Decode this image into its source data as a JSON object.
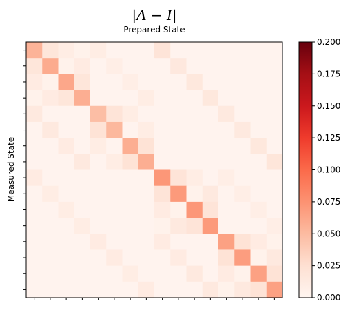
{
  "chart_data": {
    "type": "heatmap",
    "title": "|A − I|",
    "subtitle": "Prepared State",
    "xlabel": "",
    "ylabel": "Measured State",
    "colormap": "Reds",
    "vmin": 0,
    "vmax": 0.2,
    "colorbar_ticks": [
      "0.000",
      "0.025",
      "0.050",
      "0.075",
      "0.100",
      "0.125",
      "0.150",
      "0.175",
      "0.200"
    ],
    "x_tick_labels_visible": false,
    "y_tick_labels_visible": false,
    "matrix": [
      [
        0.055,
        0.018,
        0.01,
        0.004,
        0.01,
        0.002,
        0.002,
        0.002,
        0.02,
        0.002,
        0.002,
        0.002,
        0.002,
        0.002,
        0.002,
        0.002
      ],
      [
        0.018,
        0.06,
        0.004,
        0.012,
        0.002,
        0.008,
        0.002,
        0.002,
        0.002,
        0.015,
        0.002,
        0.002,
        0.002,
        0.002,
        0.002,
        0.002
      ],
      [
        0.012,
        0.004,
        0.062,
        0.018,
        0.002,
        0.002,
        0.008,
        0.002,
        0.002,
        0.002,
        0.016,
        0.002,
        0.002,
        0.002,
        0.002,
        0.002
      ],
      [
        0.004,
        0.012,
        0.018,
        0.058,
        0.002,
        0.002,
        0.002,
        0.01,
        0.002,
        0.002,
        0.002,
        0.016,
        0.002,
        0.002,
        0.002,
        0.002
      ],
      [
        0.014,
        0.002,
        0.002,
        0.002,
        0.048,
        0.02,
        0.01,
        0.002,
        0.002,
        0.002,
        0.002,
        0.002,
        0.014,
        0.002,
        0.002,
        0.002
      ],
      [
        0.002,
        0.014,
        0.002,
        0.002,
        0.022,
        0.052,
        0.002,
        0.01,
        0.002,
        0.002,
        0.002,
        0.002,
        0.002,
        0.014,
        0.002,
        0.002
      ],
      [
        0.002,
        0.002,
        0.012,
        0.002,
        0.01,
        0.002,
        0.058,
        0.022,
        0.002,
        0.002,
        0.002,
        0.002,
        0.002,
        0.002,
        0.016,
        0.002
      ],
      [
        0.002,
        0.002,
        0.002,
        0.014,
        0.002,
        0.01,
        0.022,
        0.058,
        0.002,
        0.002,
        0.002,
        0.002,
        0.002,
        0.002,
        0.002,
        0.018
      ],
      [
        0.012,
        0.002,
        0.002,
        0.002,
        0.002,
        0.002,
        0.002,
        0.002,
        0.072,
        0.02,
        0.01,
        0.002,
        0.008,
        0.002,
        0.002,
        0.002
      ],
      [
        0.002,
        0.01,
        0.002,
        0.002,
        0.002,
        0.002,
        0.002,
        0.002,
        0.02,
        0.07,
        0.004,
        0.014,
        0.002,
        0.008,
        0.002,
        0.002
      ],
      [
        0.002,
        0.002,
        0.01,
        0.002,
        0.002,
        0.002,
        0.002,
        0.002,
        0.012,
        0.004,
        0.072,
        0.02,
        0.002,
        0.002,
        0.008,
        0.002
      ],
      [
        0.002,
        0.002,
        0.002,
        0.01,
        0.002,
        0.002,
        0.002,
        0.002,
        0.004,
        0.014,
        0.02,
        0.07,
        0.002,
        0.002,
        0.002,
        0.008
      ],
      [
        0.002,
        0.002,
        0.002,
        0.002,
        0.012,
        0.002,
        0.002,
        0.002,
        0.012,
        0.002,
        0.002,
        0.002,
        0.066,
        0.022,
        0.012,
        0.004
      ],
      [
        0.002,
        0.002,
        0.002,
        0.002,
        0.002,
        0.012,
        0.002,
        0.002,
        0.002,
        0.012,
        0.002,
        0.002,
        0.022,
        0.068,
        0.004,
        0.014
      ],
      [
        0.002,
        0.002,
        0.002,
        0.002,
        0.002,
        0.002,
        0.01,
        0.002,
        0.002,
        0.002,
        0.014,
        0.002,
        0.012,
        0.004,
        0.066,
        0.022
      ],
      [
        0.002,
        0.002,
        0.002,
        0.002,
        0.002,
        0.002,
        0.002,
        0.012,
        0.002,
        0.002,
        0.002,
        0.014,
        0.004,
        0.014,
        0.022,
        0.066
      ]
    ]
  }
}
